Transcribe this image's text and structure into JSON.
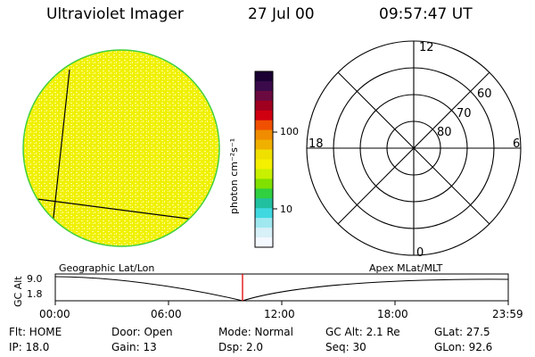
{
  "header": {
    "instrument": "Ultraviolet Imager",
    "date": "27 Jul 00",
    "time": "09:57:47 UT"
  },
  "colorbar": {
    "unit_label": "photon cm⁻²s⁻¹",
    "ticks": [
      "100",
      "10"
    ],
    "colors": [
      "#1a0033",
      "#3a0a4a",
      "#6a0a40",
      "#a00020",
      "#d00010",
      "#f05000",
      "#f08c00",
      "#f0b000",
      "#f0e000",
      "#f4f000",
      "#c8f000",
      "#80e000",
      "#30d040",
      "#20c0a0",
      "#40d8e0",
      "#a0e8f0",
      "#d8f0f8",
      "#f4f8ff"
    ]
  },
  "image": {
    "fill": "#f0f000",
    "speckle": "#ffffa0",
    "rim": "#40d040"
  },
  "polar": {
    "mlt_labels": {
      "top": "12",
      "left": "18",
      "right": "6",
      "bottom": "0"
    },
    "lat_labels": [
      "60",
      "70",
      "80"
    ]
  },
  "timeline": {
    "left_title": "Geographic Lat/Lon",
    "right_title": "Apex MLat/MLT",
    "axis_label": "GC Alt",
    "y_labels": [
      "9.0",
      "1.8"
    ],
    "x_labels": [
      "00:00",
      "06:00",
      "12:00",
      "18:00",
      "23:59"
    ],
    "marker_color": "#e00000"
  },
  "footer": {
    "row1": {
      "flt": "Flt: HOME",
      "door": "Door: Open",
      "mode": "Mode: Normal",
      "gcalt": "GC Alt: 2.1 Re",
      "glat": "GLat:  27.5"
    },
    "row2": {
      "ip": "IP: 18.0",
      "gain": "Gain: 13",
      "dsp": "Dsp:    2.0",
      "seq": "Seq: 30",
      "glon": "GLon:  92.6"
    }
  }
}
